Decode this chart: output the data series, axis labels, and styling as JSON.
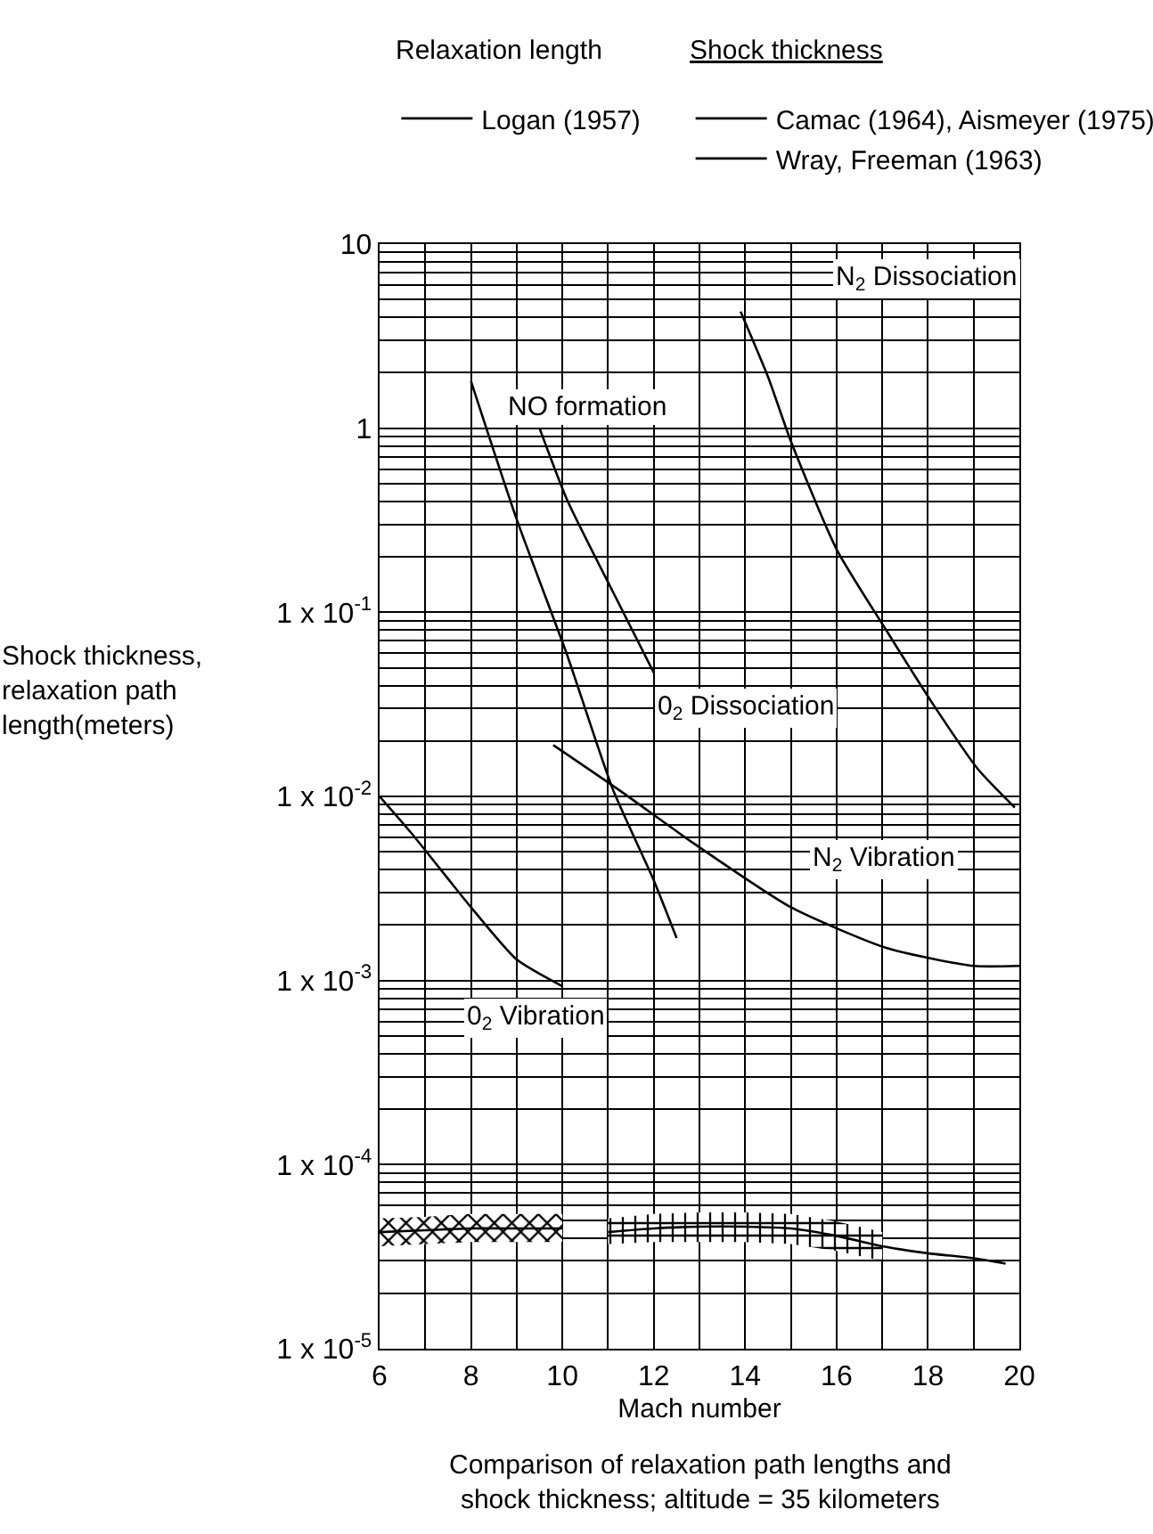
{
  "chart_data": {
    "type": "line",
    "xlabel": "Mach number",
    "ylabel": "Shock thickness,\nrelaxation path\nlength(meters)",
    "log": "y",
    "grid": true,
    "legend": "top",
    "xlim": [
      6,
      20
    ],
    "xticks": [
      6,
      8,
      10,
      12,
      14,
      16,
      18,
      20
    ],
    "ylim": [
      1e-05,
      10
    ],
    "yticks": [
      {
        "value": 10,
        "label": "10"
      },
      {
        "value": 1,
        "label": "1"
      },
      {
        "value": 0.1,
        "label": "1 x 10$^{-1}$"
      },
      {
        "value": 0.01,
        "label": "1 x 10$^{-2}$"
      },
      {
        "value": 0.001,
        "label": "1 x 10$^{-3}$"
      },
      {
        "value": 0.0001,
        "label": "1 x 10$^{-4}$"
      },
      {
        "value": 1e-05,
        "label": "1 x 10$^{-5}$"
      }
    ],
    "series": [
      {
        "name": "Logan (1957)",
        "color": "#000000",
        "x": [
          13.9,
          14.5,
          15.0,
          16.0,
          17.1,
          18.1,
          19.1,
          19.9
        ],
        "values": [
          4.3,
          1.9,
          0.85,
          0.22,
          0.079,
          0.032,
          0.014,
          0.0087
        ]
      },
      {
        "color": "#000000",
        "x": [
          9.5,
          10.1,
          11.1,
          12.0
        ],
        "values": [
          1.0,
          0.41,
          0.13,
          0.047
        ]
      },
      {
        "color": "#000000",
        "x": [
          8.0,
          9.0,
          10.1,
          11.1,
          12.0,
          12.5
        ],
        "values": [
          1.8,
          0.32,
          0.059,
          0.011,
          0.0035,
          0.0017
        ]
      },
      {
        "color": "#000000",
        "x": [
          9.8,
          11.2,
          12.9,
          15.0,
          17.1,
          19.0,
          20.0
        ],
        "values": [
          0.019,
          0.011,
          0.0055,
          0.0025,
          0.0015,
          0.0012,
          0.0012
        ]
      },
      {
        "color": "#000000",
        "x": [
          6.0,
          6.7,
          8.0,
          9.0,
          10.0
        ],
        "values": [
          0.01,
          0.0063,
          0.0025,
          0.0013,
          0.00093
        ]
      },
      {
        "name": "Camac (1964), Aismeyer (1975)",
        "color": "#000000",
        "x": [
          6,
          7,
          8,
          9,
          10
        ],
        "values": [
          4.3e-05,
          4.4e-05,
          4.5e-05,
          4.5e-05,
          4.5e-05
        ],
        "lower": [
          3.6e-05,
          3.7e-05,
          3.8e-05,
          3.8e-05,
          3.8e-05
        ],
        "upper": [
          5.1e-05,
          5.2e-05,
          5.4e-05,
          5.4e-05,
          5.4e-05
        ]
      },
      {
        "name": "Wray, Freeman (1963)",
        "color": "#000000",
        "x": [
          11,
          12,
          13,
          14,
          15,
          16,
          17,
          18,
          19,
          19.7
        ],
        "values": [
          4.3e-05,
          4.5e-05,
          4.6e-05,
          4.6e-05,
          4.5e-05,
          4.1e-05,
          3.6e-05,
          3.3e-05,
          3.1e-05,
          2.9e-05
        ],
        "lower": [
          3.7e-05,
          3.8e-05,
          3.8e-05,
          3.8e-05,
          3.7e-05,
          3.4e-05,
          3e-05,
          null,
          null,
          null
        ],
        "upper": [
          5.1e-05,
          5.4e-05,
          5.5e-05,
          5.5e-05,
          5.4e-05,
          4.9e-05,
          4.3e-05,
          null,
          null,
          null
        ]
      }
    ],
    "annotations": [
      "Relaxation length",
      "Shock thickness",
      "N$_{2}$ Dissociation",
      {
        "text": "NO formation",
        "x": 9.5,
        "y": 1.0
      },
      {
        "text": "0$_{2}$ Dissociation",
        "x": 12.0,
        "y": 0.047
      },
      {
        "text": "N$_{2}$ Vibration",
        "x": 17.1,
        "y": 0.0015
      },
      {
        "text": "0$_{2}$ Vibration",
        "x": 10.0,
        "y": 0.00093
      },
      "Comparison of relaxation path lengths and\nshock thickness; altitude = 35 kilometers"
    ]
  }
}
